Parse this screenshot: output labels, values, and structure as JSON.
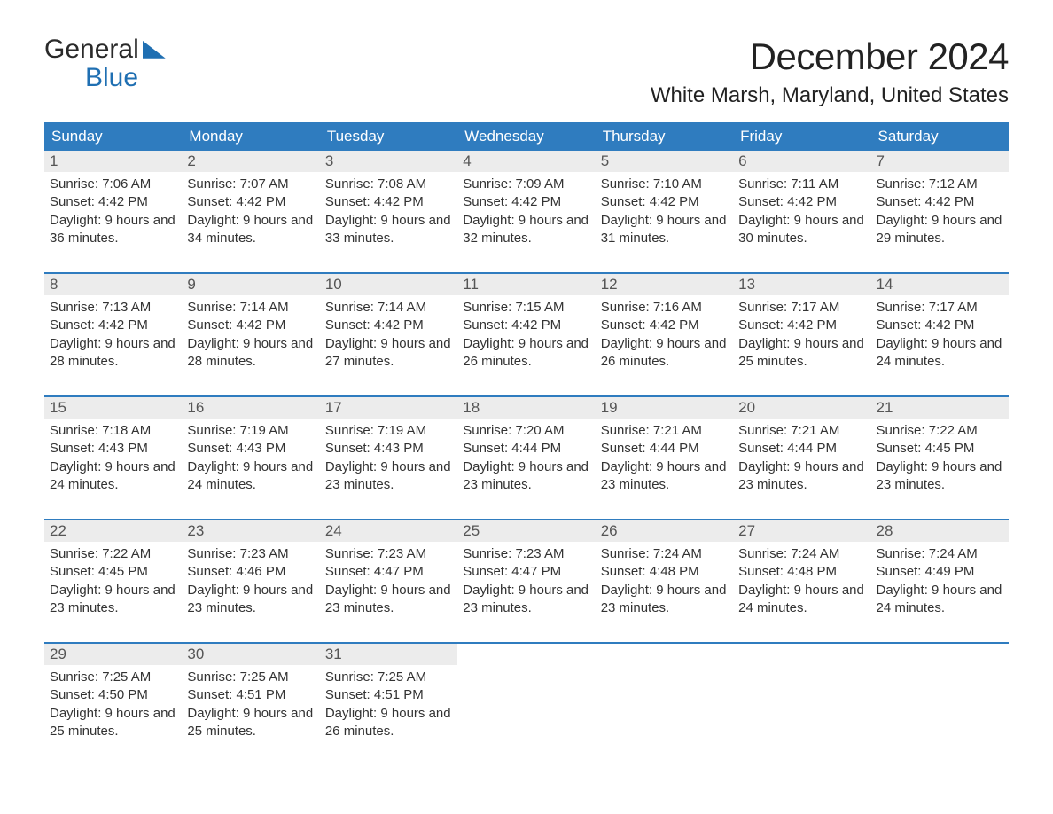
{
  "logo": {
    "word1": "General",
    "word2": "Blue"
  },
  "title": "December 2024",
  "location": "White Marsh, Maryland, United States",
  "colors": {
    "header_bg": "#2f7cbf",
    "header_text": "#ffffff",
    "daynum_bg": "#ececec",
    "text": "#333333",
    "rule": "#2f7cbf",
    "logo_accent": "#1f6fb2"
  },
  "day_headers": [
    "Sunday",
    "Monday",
    "Tuesday",
    "Wednesday",
    "Thursday",
    "Friday",
    "Saturday"
  ],
  "weeks": [
    [
      {
        "n": "1",
        "sr": "Sunrise: 7:06 AM",
        "ss": "Sunset: 4:42 PM",
        "dl": "Daylight: 9 hours and 36 minutes."
      },
      {
        "n": "2",
        "sr": "Sunrise: 7:07 AM",
        "ss": "Sunset: 4:42 PM",
        "dl": "Daylight: 9 hours and 34 minutes."
      },
      {
        "n": "3",
        "sr": "Sunrise: 7:08 AM",
        "ss": "Sunset: 4:42 PM",
        "dl": "Daylight: 9 hours and 33 minutes."
      },
      {
        "n": "4",
        "sr": "Sunrise: 7:09 AM",
        "ss": "Sunset: 4:42 PM",
        "dl": "Daylight: 9 hours and 32 minutes."
      },
      {
        "n": "5",
        "sr": "Sunrise: 7:10 AM",
        "ss": "Sunset: 4:42 PM",
        "dl": "Daylight: 9 hours and 31 minutes."
      },
      {
        "n": "6",
        "sr": "Sunrise: 7:11 AM",
        "ss": "Sunset: 4:42 PM",
        "dl": "Daylight: 9 hours and 30 minutes."
      },
      {
        "n": "7",
        "sr": "Sunrise: 7:12 AM",
        "ss": "Sunset: 4:42 PM",
        "dl": "Daylight: 9 hours and 29 minutes."
      }
    ],
    [
      {
        "n": "8",
        "sr": "Sunrise: 7:13 AM",
        "ss": "Sunset: 4:42 PM",
        "dl": "Daylight: 9 hours and 28 minutes."
      },
      {
        "n": "9",
        "sr": "Sunrise: 7:14 AM",
        "ss": "Sunset: 4:42 PM",
        "dl": "Daylight: 9 hours and 28 minutes."
      },
      {
        "n": "10",
        "sr": "Sunrise: 7:14 AM",
        "ss": "Sunset: 4:42 PM",
        "dl": "Daylight: 9 hours and 27 minutes."
      },
      {
        "n": "11",
        "sr": "Sunrise: 7:15 AM",
        "ss": "Sunset: 4:42 PM",
        "dl": "Daylight: 9 hours and 26 minutes."
      },
      {
        "n": "12",
        "sr": "Sunrise: 7:16 AM",
        "ss": "Sunset: 4:42 PM",
        "dl": "Daylight: 9 hours and 26 minutes."
      },
      {
        "n": "13",
        "sr": "Sunrise: 7:17 AM",
        "ss": "Sunset: 4:42 PM",
        "dl": "Daylight: 9 hours and 25 minutes."
      },
      {
        "n": "14",
        "sr": "Sunrise: 7:17 AM",
        "ss": "Sunset: 4:42 PM",
        "dl": "Daylight: 9 hours and 24 minutes."
      }
    ],
    [
      {
        "n": "15",
        "sr": "Sunrise: 7:18 AM",
        "ss": "Sunset: 4:43 PM",
        "dl": "Daylight: 9 hours and 24 minutes."
      },
      {
        "n": "16",
        "sr": "Sunrise: 7:19 AM",
        "ss": "Sunset: 4:43 PM",
        "dl": "Daylight: 9 hours and 24 minutes."
      },
      {
        "n": "17",
        "sr": "Sunrise: 7:19 AM",
        "ss": "Sunset: 4:43 PM",
        "dl": "Daylight: 9 hours and 23 minutes."
      },
      {
        "n": "18",
        "sr": "Sunrise: 7:20 AM",
        "ss": "Sunset: 4:44 PM",
        "dl": "Daylight: 9 hours and 23 minutes."
      },
      {
        "n": "19",
        "sr": "Sunrise: 7:21 AM",
        "ss": "Sunset: 4:44 PM",
        "dl": "Daylight: 9 hours and 23 minutes."
      },
      {
        "n": "20",
        "sr": "Sunrise: 7:21 AM",
        "ss": "Sunset: 4:44 PM",
        "dl": "Daylight: 9 hours and 23 minutes."
      },
      {
        "n": "21",
        "sr": "Sunrise: 7:22 AM",
        "ss": "Sunset: 4:45 PM",
        "dl": "Daylight: 9 hours and 23 minutes."
      }
    ],
    [
      {
        "n": "22",
        "sr": "Sunrise: 7:22 AM",
        "ss": "Sunset: 4:45 PM",
        "dl": "Daylight: 9 hours and 23 minutes."
      },
      {
        "n": "23",
        "sr": "Sunrise: 7:23 AM",
        "ss": "Sunset: 4:46 PM",
        "dl": "Daylight: 9 hours and 23 minutes."
      },
      {
        "n": "24",
        "sr": "Sunrise: 7:23 AM",
        "ss": "Sunset: 4:47 PM",
        "dl": "Daylight: 9 hours and 23 minutes."
      },
      {
        "n": "25",
        "sr": "Sunrise: 7:23 AM",
        "ss": "Sunset: 4:47 PM",
        "dl": "Daylight: 9 hours and 23 minutes."
      },
      {
        "n": "26",
        "sr": "Sunrise: 7:24 AM",
        "ss": "Sunset: 4:48 PM",
        "dl": "Daylight: 9 hours and 23 minutes."
      },
      {
        "n": "27",
        "sr": "Sunrise: 7:24 AM",
        "ss": "Sunset: 4:48 PM",
        "dl": "Daylight: 9 hours and 24 minutes."
      },
      {
        "n": "28",
        "sr": "Sunrise: 7:24 AM",
        "ss": "Sunset: 4:49 PM",
        "dl": "Daylight: 9 hours and 24 minutes."
      }
    ],
    [
      {
        "n": "29",
        "sr": "Sunrise: 7:25 AM",
        "ss": "Sunset: 4:50 PM",
        "dl": "Daylight: 9 hours and 25 minutes."
      },
      {
        "n": "30",
        "sr": "Sunrise: 7:25 AM",
        "ss": "Sunset: 4:51 PM",
        "dl": "Daylight: 9 hours and 25 minutes."
      },
      {
        "n": "31",
        "sr": "Sunrise: 7:25 AM",
        "ss": "Sunset: 4:51 PM",
        "dl": "Daylight: 9 hours and 26 minutes."
      },
      null,
      null,
      null,
      null
    ]
  ]
}
